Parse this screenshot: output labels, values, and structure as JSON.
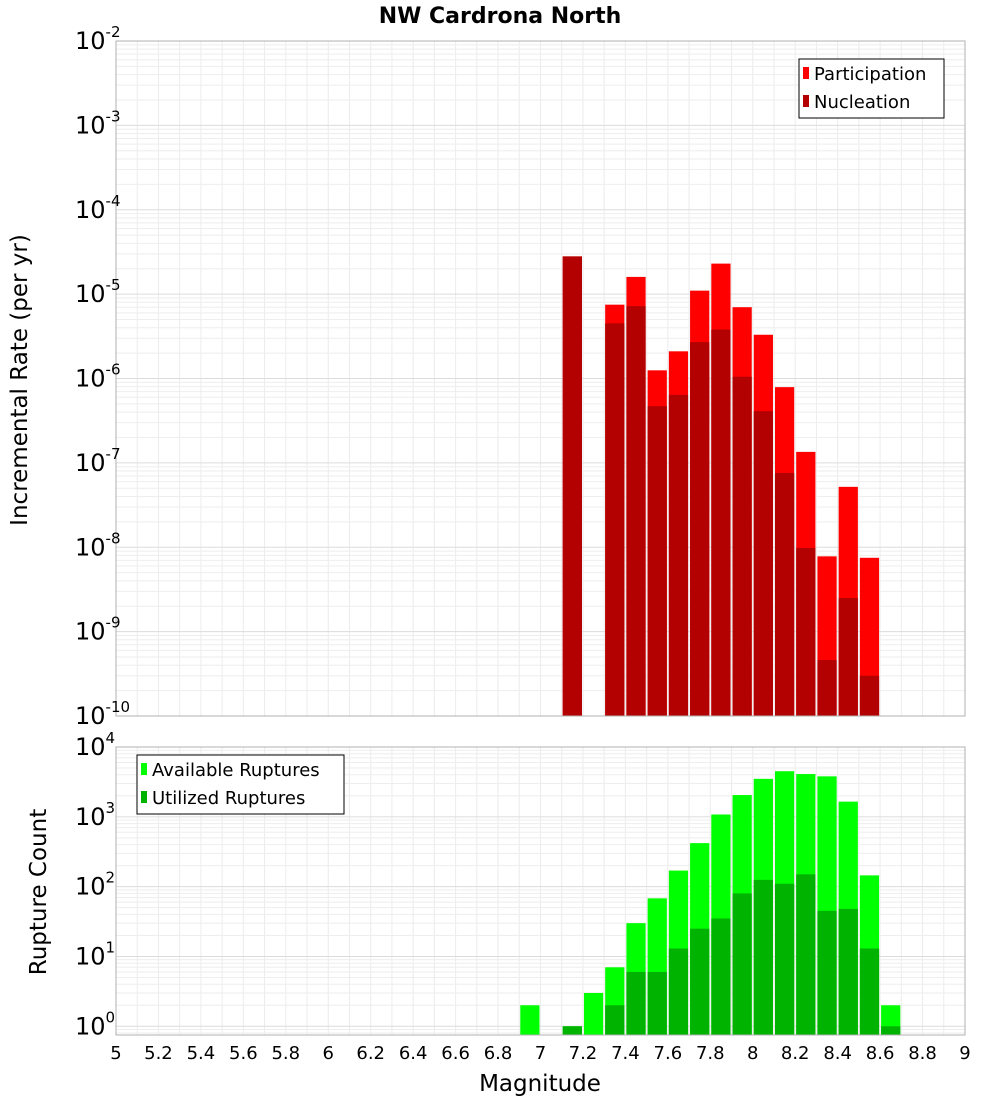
{
  "chart_data": [
    {
      "type": "bar",
      "title": "NW Cardrona North",
      "xlabel": "",
      "ylabel": "Incremental Rate (per yr)",
      "yscale": "log",
      "ylim": [
        1e-10,
        0.01
      ],
      "xlim": [
        5,
        9
      ],
      "x": [
        7.05,
        7.15,
        7.25,
        7.35,
        7.45,
        7.55,
        7.65,
        7.75,
        7.85,
        7.95,
        8.05,
        8.15,
        8.25,
        8.35,
        8.45,
        8.55
      ],
      "series": [
        {
          "name": "Participation",
          "color": "#ff0000",
          "values": [
            null,
            2.8e-05,
            null,
            7.5e-06,
            1.6e-05,
            1.25e-06,
            2.1e-06,
            1.1e-05,
            2.3e-05,
            7e-06,
            3.3e-06,
            7.9e-07,
            1.35e-07,
            7.8e-09,
            5.2e-08,
            7.5e-09
          ]
        },
        {
          "name": "Nucleation",
          "color": "#b30000",
          "values": [
            null,
            2.8e-05,
            null,
            4.5e-06,
            7.2e-06,
            4.7e-07,
            6.4e-07,
            2.7e-06,
            3.8e-06,
            1.05e-06,
            4.1e-07,
            7.6e-08,
            9.8e-09,
            4.6e-10,
            2.5e-09,
            3e-10
          ]
        }
      ],
      "legend": "top-right",
      "grid": true
    },
    {
      "type": "bar",
      "title": "",
      "xlabel": "Magnitude",
      "ylabel": "Rupture Count",
      "yscale": "log",
      "ylim": [
        0.75,
        10000
      ],
      "xlim": [
        5,
        9
      ],
      "xticks": [
        "5",
        "5.2",
        "5.4",
        "5.6",
        "5.8",
        "6",
        "6.2",
        "6.4",
        "6.6",
        "6.8",
        "7",
        "7.2",
        "7.4",
        "7.6",
        "7.8",
        "8",
        "8.2",
        "8.4",
        "8.6",
        "8.8",
        "9"
      ],
      "x": [
        6.95,
        7.05,
        7.15,
        7.25,
        7.35,
        7.45,
        7.55,
        7.65,
        7.75,
        7.85,
        7.95,
        8.05,
        8.15,
        8.25,
        8.35,
        8.45,
        8.55,
        8.65
      ],
      "series": [
        {
          "name": "Available Ruptures",
          "color": "#00ff00",
          "values": [
            2,
            null,
            1,
            3,
            7,
            30,
            68,
            170,
            420,
            1080,
            2050,
            3500,
            4500,
            4100,
            3800,
            1650,
            145,
            2
          ]
        },
        {
          "name": "Utilized Ruptures",
          "color": "#00b300",
          "values": [
            null,
            null,
            1,
            null,
            2,
            6,
            6,
            13,
            25,
            35,
            80,
            125,
            110,
            150,
            45,
            48,
            13,
            1
          ]
        }
      ],
      "legend": "top-left",
      "grid": true
    }
  ]
}
